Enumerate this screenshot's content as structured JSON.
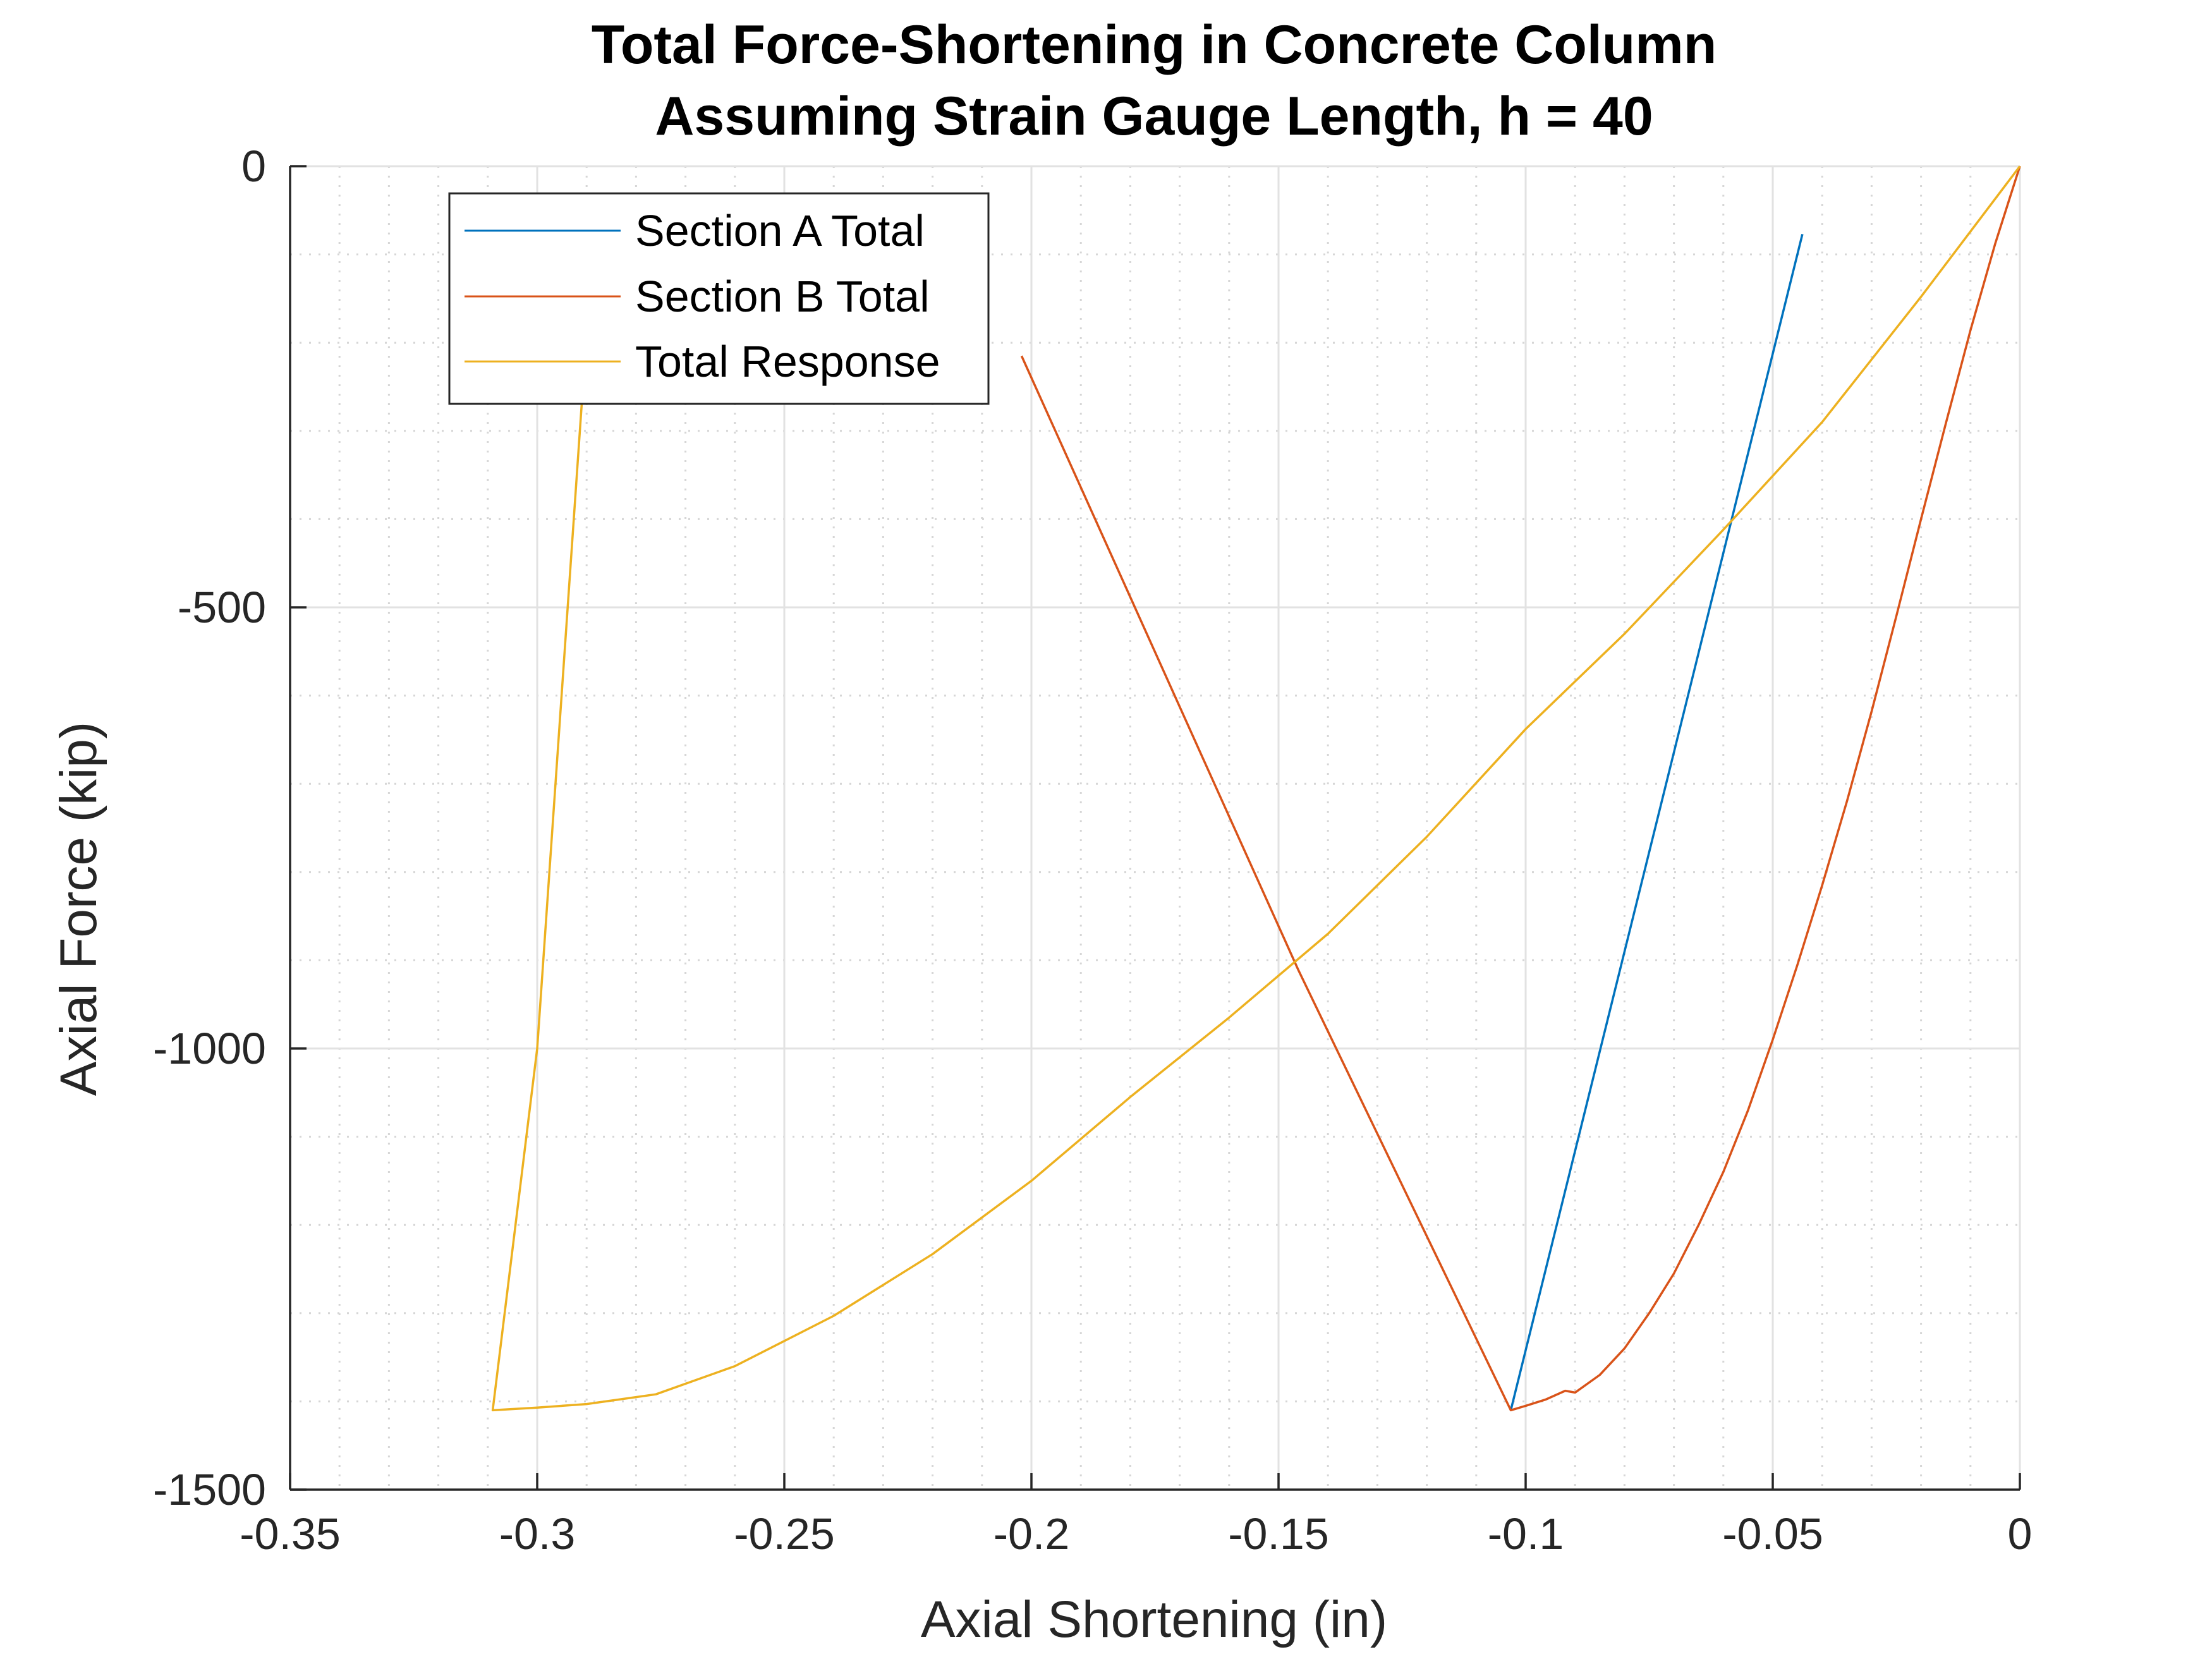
{
  "chart_data": {
    "type": "line",
    "title": [
      "Total Force-Shortening in Concrete Column",
      "Assuming Strain Gauge Length, h = 40"
    ],
    "xlabel": "Axial Shortening (in)",
    "ylabel": "Axial Force (kip)",
    "xlim": [
      -0.35,
      0
    ],
    "ylim": [
      -1500,
      0
    ],
    "xticks": [
      -0.35,
      -0.3,
      -0.25,
      -0.2,
      -0.15,
      -0.1,
      -0.05,
      0
    ],
    "xtick_labels": [
      "-0.35",
      "-0.3",
      "-0.25",
      "-0.2",
      "-0.15",
      "-0.1",
      "-0.05",
      "0"
    ],
    "yticks": [
      -1500,
      -1000,
      -500,
      0
    ],
    "ytick_labels": [
      "-1500",
      "-1000",
      "-500",
      "0"
    ],
    "grid": true,
    "minor_grid": true,
    "legend_position": "top-left",
    "series": [
      {
        "name": "Section A Total",
        "color": "#0072BD",
        "x": [
          -0.044,
          -0.103
        ],
        "y": [
          -77,
          -1410
        ]
      },
      {
        "name": "Section B Total",
        "color": "#D95319",
        "x": [
          0,
          -0.005,
          -0.01,
          -0.015,
          -0.02,
          -0.025,
          -0.03,
          -0.035,
          -0.04,
          -0.045,
          -0.05,
          -0.055,
          -0.06,
          -0.065,
          -0.07,
          -0.075,
          -0.08,
          -0.085,
          -0.09,
          -0.092,
          -0.096,
          -0.1,
          -0.103,
          -0.146,
          -0.202
        ],
        "y": [
          0,
          -88,
          -186,
          -292,
          -400,
          -510,
          -618,
          -720,
          -815,
          -905,
          -990,
          -1070,
          -1140,
          -1200,
          -1255,
          -1300,
          -1340,
          -1370,
          -1390,
          -1388,
          -1398,
          -1405,
          -1410,
          -911,
          -215
        ]
      },
      {
        "name": "Total Response",
        "color": "#EDB120",
        "x": [
          0,
          -0.02,
          -0.04,
          -0.06,
          -0.08,
          -0.1,
          -0.12,
          -0.14,
          -0.16,
          -0.18,
          -0.2,
          -0.22,
          -0.24,
          -0.26,
          -0.276,
          -0.29,
          -0.3,
          -0.309,
          -0.3,
          -0.291
        ],
        "y": [
          0,
          -148,
          -290,
          -412,
          -530,
          -638,
          -760,
          -870,
          -965,
          -1055,
          -1150,
          -1233,
          -1303,
          -1360,
          -1392,
          -1403,
          -1407,
          -1410,
          -1000,
          -270
        ]
      }
    ]
  }
}
